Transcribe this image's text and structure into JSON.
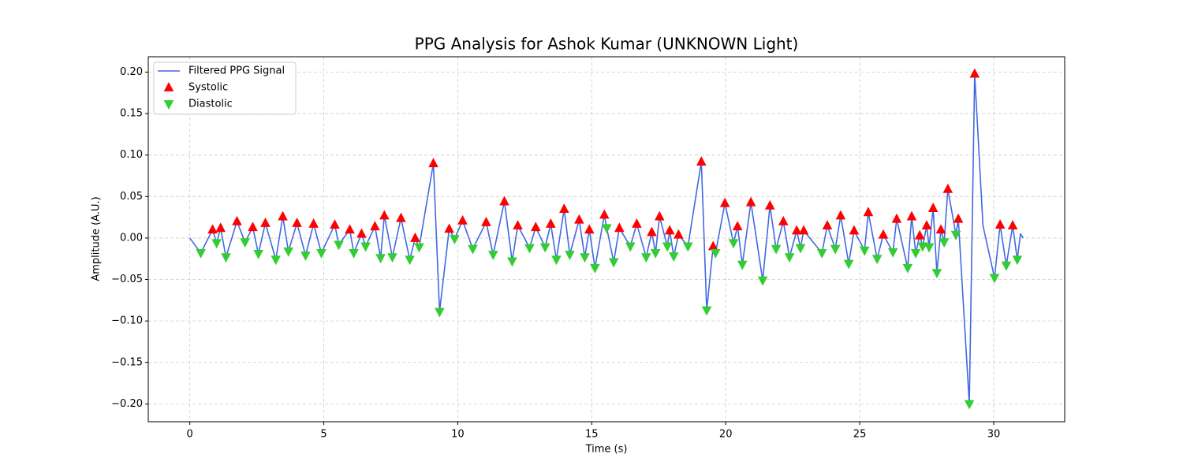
{
  "chart_data": {
    "type": "line",
    "title": "PPG Analysis for Ashok Kumar (UNKNOWN Light)",
    "xlabel": "Time (s)",
    "ylabel": "Amplitude (A.U.)",
    "xlim": [
      -1.55,
      32.65
    ],
    "ylim": [
      -0.2215,
      0.2185
    ],
    "xticks": [
      0,
      5,
      10,
      15,
      20,
      25,
      30
    ],
    "yticks": [
      {
        "value": -0.2,
        "label": "−0.20"
      },
      {
        "value": -0.15,
        "label": "−0.15"
      },
      {
        "value": -0.1,
        "label": "−0.10"
      },
      {
        "value": -0.05,
        "label": "−0.05"
      },
      {
        "value": 0,
        "label": "0.00"
      },
      {
        "value": 0.05,
        "label": "0.05"
      },
      {
        "value": 0.1,
        "label": "0.10"
      },
      {
        "value": 0.15,
        "label": "0.15"
      },
      {
        "value": 0.2,
        "label": "0.20"
      }
    ],
    "grid": true,
    "legend": "upper left",
    "series": [
      {
        "name": "Filtered PPG Signal",
        "color": "#4169e1",
        "marker": "line",
        "x": [
          0,
          0.41,
          0.85,
          1.0,
          1.15,
          1.35,
          1.76,
          2.06,
          2.35,
          2.56,
          2.82,
          3.21,
          3.47,
          3.68,
          4.0,
          4.32,
          4.62,
          4.91,
          5.41,
          5.56,
          5.97,
          6.12,
          6.41,
          6.56,
          6.91,
          7.12,
          7.26,
          7.56,
          7.88,
          8.21,
          8.41,
          8.56,
          9.09,
          9.32,
          9.68,
          9.88,
          10.18,
          10.56,
          11.06,
          11.32,
          11.74,
          12.03,
          12.24,
          12.68,
          12.91,
          13.26,
          13.47,
          13.68,
          13.97,
          14.18,
          14.53,
          14.74,
          14.91,
          15.12,
          15.47,
          15.56,
          15.82,
          16.03,
          16.44,
          16.68,
          17.03,
          17.24,
          17.38,
          17.53,
          17.82,
          17.91,
          18.06,
          18.24,
          18.59,
          19.09,
          19.29,
          19.53,
          19.62,
          19.97,
          20.29,
          20.44,
          20.62,
          20.94,
          21.38,
          21.65,
          21.88,
          22.15,
          22.38,
          22.65,
          22.79,
          22.91,
          23.59,
          23.79,
          24.09,
          24.29,
          24.59,
          24.79,
          25.18,
          25.32,
          25.65,
          25.88,
          26.24,
          26.38,
          26.79,
          26.94,
          27.09,
          27.24,
          27.35,
          27.5,
          27.59,
          27.74,
          27.88,
          28.03,
          28.15,
          28.29,
          28.59,
          28.68,
          29.09,
          29.29,
          29.6,
          30.03,
          30.24,
          30.47,
          30.71,
          30.88,
          31.0,
          31.1
        ],
        "values": [
          0,
          -0.018,
          0.01,
          -0.006,
          0.012,
          -0.023,
          0.02,
          -0.005,
          0.013,
          -0.019,
          0.018,
          -0.026,
          0.026,
          -0.016,
          0.018,
          -0.021,
          0.017,
          -0.018,
          0.016,
          -0.008,
          0.01,
          -0.018,
          0.005,
          -0.01,
          0.014,
          -0.024,
          0.027,
          -0.023,
          0.024,
          -0.026,
          0.0,
          -0.011,
          0.09,
          -0.089,
          0.011,
          -0.001,
          0.021,
          -0.013,
          0.019,
          -0.02,
          0.044,
          -0.028,
          0.015,
          -0.012,
          0.013,
          -0.011,
          0.017,
          -0.026,
          0.035,
          -0.02,
          0.022,
          -0.023,
          0.01,
          -0.036,
          0.028,
          0.012,
          -0.029,
          0.012,
          -0.01,
          0.017,
          -0.023,
          0.007,
          -0.018,
          0.026,
          -0.01,
          0.009,
          -0.022,
          0.004,
          -0.01,
          0.092,
          -0.087,
          -0.01,
          -0.018,
          0.042,
          -0.006,
          0.014,
          -0.032,
          0.043,
          -0.051,
          0.039,
          -0.013,
          0.02,
          -0.023,
          0.009,
          -0.012,
          0.009,
          -0.018,
          0.015,
          -0.013,
          0.027,
          -0.031,
          0.009,
          -0.015,
          0.031,
          -0.025,
          0.004,
          -0.017,
          0.023,
          -0.036,
          0.026,
          -0.018,
          0.003,
          -0.01,
          0.015,
          -0.011,
          0.036,
          -0.042,
          0.01,
          -0.005,
          0.059,
          0.004,
          0.023,
          -0.2,
          0.198,
          0.015,
          -0.048,
          0.016,
          -0.033,
          0.015,
          -0.026,
          0.005,
          0.0
        ]
      },
      {
        "name": "Systolic",
        "color": "#ff0000",
        "marker": "triangle-up",
        "x": [
          0.85,
          1.15,
          1.76,
          2.35,
          2.82,
          3.47,
          4.0,
          4.62,
          5.41,
          5.97,
          6.41,
          6.91,
          7.26,
          7.88,
          8.41,
          9.09,
          9.68,
          10.18,
          11.06,
          11.74,
          12.24,
          12.91,
          13.47,
          13.97,
          14.53,
          14.91,
          15.47,
          16.03,
          16.68,
          17.24,
          17.53,
          17.91,
          18.24,
          19.09,
          19.53,
          19.97,
          20.44,
          20.94,
          21.65,
          22.15,
          22.65,
          22.91,
          23.79,
          24.29,
          24.79,
          25.32,
          25.88,
          26.38,
          26.94,
          27.24,
          27.5,
          27.74,
          28.03,
          28.29,
          28.68,
          29.29,
          30.24,
          30.71
        ],
        "values": [
          0.01,
          0.012,
          0.02,
          0.013,
          0.018,
          0.026,
          0.018,
          0.017,
          0.016,
          0.01,
          0.005,
          0.014,
          0.027,
          0.024,
          0.0,
          0.09,
          0.011,
          0.021,
          0.019,
          0.044,
          0.015,
          0.013,
          0.017,
          0.035,
          0.022,
          0.01,
          0.028,
          0.012,
          0.017,
          0.007,
          0.026,
          0.009,
          0.004,
          0.092,
          -0.01,
          0.042,
          0.014,
          0.043,
          0.039,
          0.02,
          0.009,
          0.009,
          0.015,
          0.027,
          0.009,
          0.031,
          0.004,
          0.023,
          0.026,
          0.003,
          0.015,
          0.036,
          0.01,
          0.059,
          0.023,
          0.198,
          0.016,
          0.015
        ]
      },
      {
        "name": "Diastolic",
        "color": "#32cd32",
        "marker": "triangle-down",
        "x": [
          0.41,
          1.0,
          1.35,
          2.06,
          2.56,
          3.21,
          3.68,
          4.32,
          4.91,
          5.56,
          6.12,
          6.56,
          7.12,
          7.56,
          8.21,
          8.56,
          9.32,
          9.88,
          10.56,
          11.32,
          12.03,
          12.68,
          13.26,
          13.68,
          14.18,
          14.74,
          15.12,
          15.56,
          15.82,
          16.44,
          17.03,
          17.38,
          17.82,
          18.06,
          18.59,
          19.29,
          19.62,
          20.29,
          20.62,
          21.38,
          21.88,
          22.38,
          22.79,
          23.59,
          24.09,
          24.59,
          25.18,
          25.65,
          26.24,
          26.79,
          27.09,
          27.35,
          27.59,
          27.88,
          28.15,
          28.59,
          29.09,
          30.03,
          30.47,
          30.88
        ],
        "values": [
          -0.018,
          -0.006,
          -0.023,
          -0.005,
          -0.019,
          -0.026,
          -0.016,
          -0.021,
          -0.018,
          -0.008,
          -0.018,
          -0.01,
          -0.024,
          -0.023,
          -0.026,
          -0.011,
          -0.089,
          -0.001,
          -0.013,
          -0.02,
          -0.028,
          -0.012,
          -0.011,
          -0.026,
          -0.02,
          -0.023,
          -0.036,
          0.012,
          -0.029,
          -0.01,
          -0.023,
          -0.018,
          -0.01,
          -0.022,
          -0.01,
          -0.087,
          -0.018,
          -0.006,
          -0.032,
          -0.051,
          -0.013,
          -0.023,
          -0.012,
          -0.018,
          -0.013,
          -0.031,
          -0.015,
          -0.025,
          -0.017,
          -0.036,
          -0.018,
          -0.01,
          -0.011,
          -0.042,
          -0.005,
          0.004,
          -0.2,
          -0.048,
          -0.033,
          -0.026
        ]
      }
    ]
  }
}
